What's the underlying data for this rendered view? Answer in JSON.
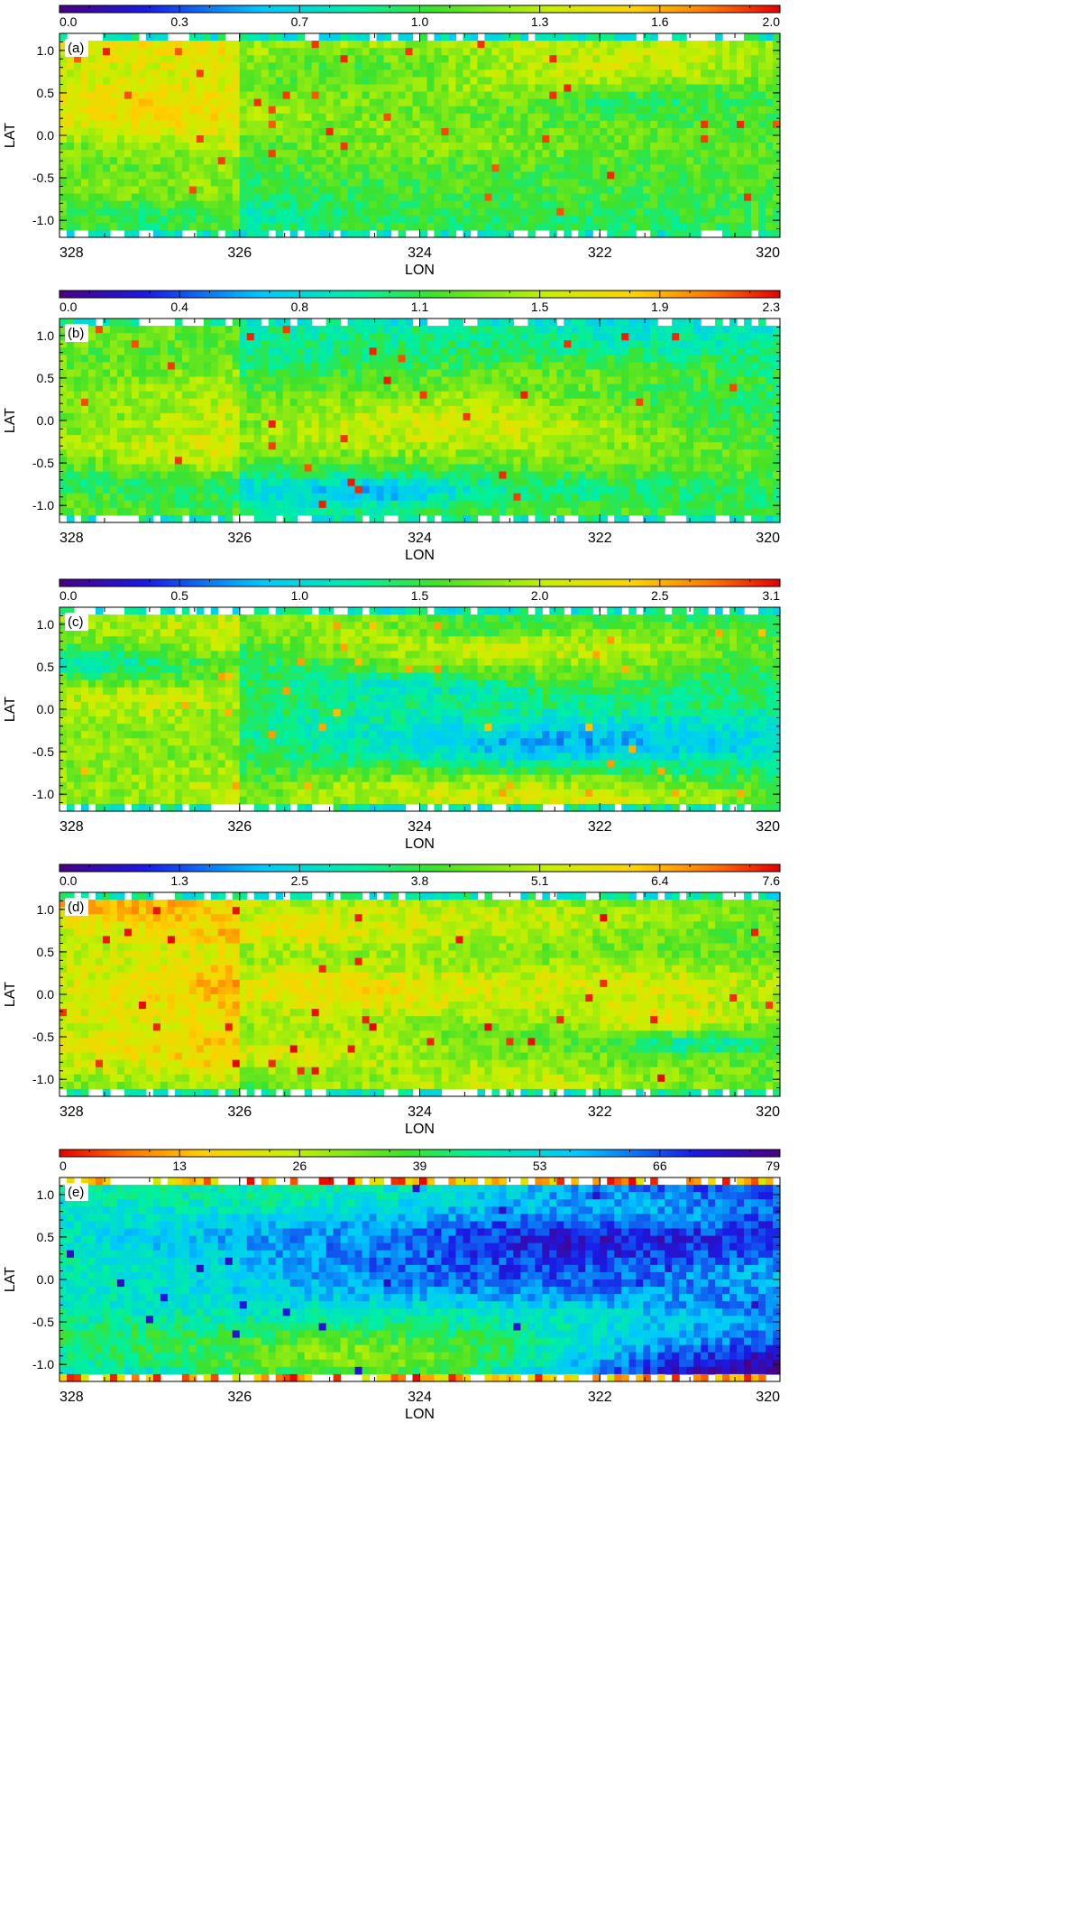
{
  "chart_data": [
    {
      "type": "heatmap",
      "panel_label": "(a)",
      "xlabel": "LON",
      "ylabel": "LAT",
      "xlim": [
        328,
        320
      ],
      "ylim": [
        -1.2,
        1.2
      ],
      "x_ticks": [
        "328",
        "326",
        "324",
        "322",
        "320"
      ],
      "y_ticks": [
        "1.0",
        "0.5",
        "0.0",
        "-0.5",
        "-1.0"
      ],
      "colorbar": {
        "colormap": "rainbow",
        "range": [
          0.0,
          2.0
        ],
        "tick_labels": [
          "0.0",
          "0.3",
          "0.7",
          "1.0",
          "1.3",
          "1.6",
          "2.0"
        ]
      },
      "map_description_values": {
        "background_level": 1.1,
        "hotspot_level": 1.9
      }
    },
    {
      "type": "heatmap",
      "panel_label": "(b)",
      "xlabel": "LON",
      "ylabel": "LAT",
      "xlim": [
        328,
        320
      ],
      "ylim": [
        -1.2,
        1.2
      ],
      "x_ticks": [
        "328",
        "326",
        "324",
        "322",
        "320"
      ],
      "y_ticks": [
        "1.0",
        "0.5",
        "0.0",
        "-0.5",
        "-1.0"
      ],
      "colorbar": {
        "colormap": "rainbow",
        "range": [
          0.0,
          2.3
        ],
        "tick_labels": [
          "0.0",
          "0.4",
          "0.8",
          "1.1",
          "1.5",
          "1.9",
          "2.3"
        ]
      },
      "map_description_values": {
        "background_level": 1.1,
        "hotspot_level": 2.2
      }
    },
    {
      "type": "heatmap",
      "panel_label": "(c)",
      "xlabel": "LON",
      "ylabel": "LAT",
      "xlim": [
        328,
        320
      ],
      "ylim": [
        -1.2,
        1.2
      ],
      "x_ticks": [
        "328",
        "326",
        "324",
        "322",
        "320"
      ],
      "y_ticks": [
        "1.0",
        "0.5",
        "0.0",
        "-0.5",
        "-1.0"
      ],
      "colorbar": {
        "colormap": "rainbow",
        "range": [
          0.0,
          3.1
        ],
        "tick_labels": [
          "0.0",
          "0.5",
          "1.0",
          "1.5",
          "2.0",
          "2.5",
          "3.1"
        ]
      },
      "map_description_values": {
        "background_level": 1.5,
        "hotspot_level": 2.6
      }
    },
    {
      "type": "heatmap",
      "panel_label": "(d)",
      "xlabel": "LON",
      "ylabel": "LAT",
      "xlim": [
        328,
        320
      ],
      "ylim": [
        -1.2,
        1.2
      ],
      "x_ticks": [
        "328",
        "326",
        "324",
        "322",
        "320"
      ],
      "y_ticks": [
        "1.0",
        "0.5",
        "0.0",
        "-0.5",
        "-1.0"
      ],
      "colorbar": {
        "colormap": "rainbow",
        "range": [
          0.0,
          7.6
        ],
        "tick_labels": [
          "0.0",
          "1.3",
          "2.5",
          "3.8",
          "5.1",
          "6.4",
          "7.6"
        ]
      },
      "map_description_values": {
        "background_level": 4.2,
        "hotspot_level": 7.4
      }
    },
    {
      "type": "heatmap",
      "panel_label": "(e)",
      "xlabel": "LON",
      "ylabel": "LAT",
      "xlim": [
        328,
        320
      ],
      "ylim": [
        -1.2,
        1.2
      ],
      "x_ticks": [
        "328",
        "326",
        "324",
        "322",
        "320"
      ],
      "y_ticks": [
        "1.0",
        "0.5",
        "0.0",
        "-0.5",
        "-1.0"
      ],
      "colorbar": {
        "colormap": "rainbow_reversed",
        "range": [
          0,
          79
        ],
        "tick_labels": [
          "0",
          "13",
          "26",
          "39",
          "53",
          "66",
          "79"
        ]
      },
      "map_description_values": {
        "background_level": 55,
        "hotspot_level": 72
      }
    }
  ]
}
